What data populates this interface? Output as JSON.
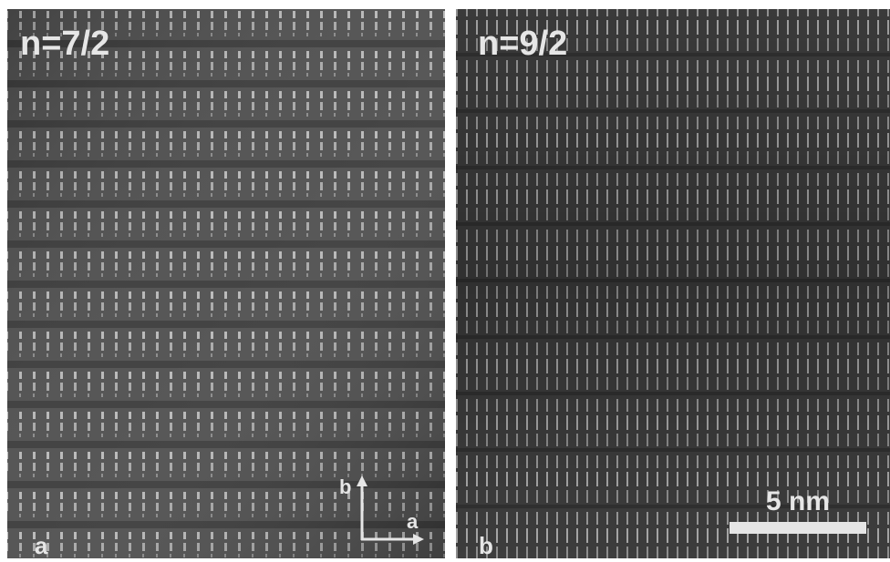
{
  "panels": [
    {
      "label": "n=7/2",
      "letter": "a",
      "axis_up": "b",
      "axis_right": "a"
    },
    {
      "label": "n=9/2",
      "letter": "b",
      "scale_bar": "5 nm"
    }
  ]
}
